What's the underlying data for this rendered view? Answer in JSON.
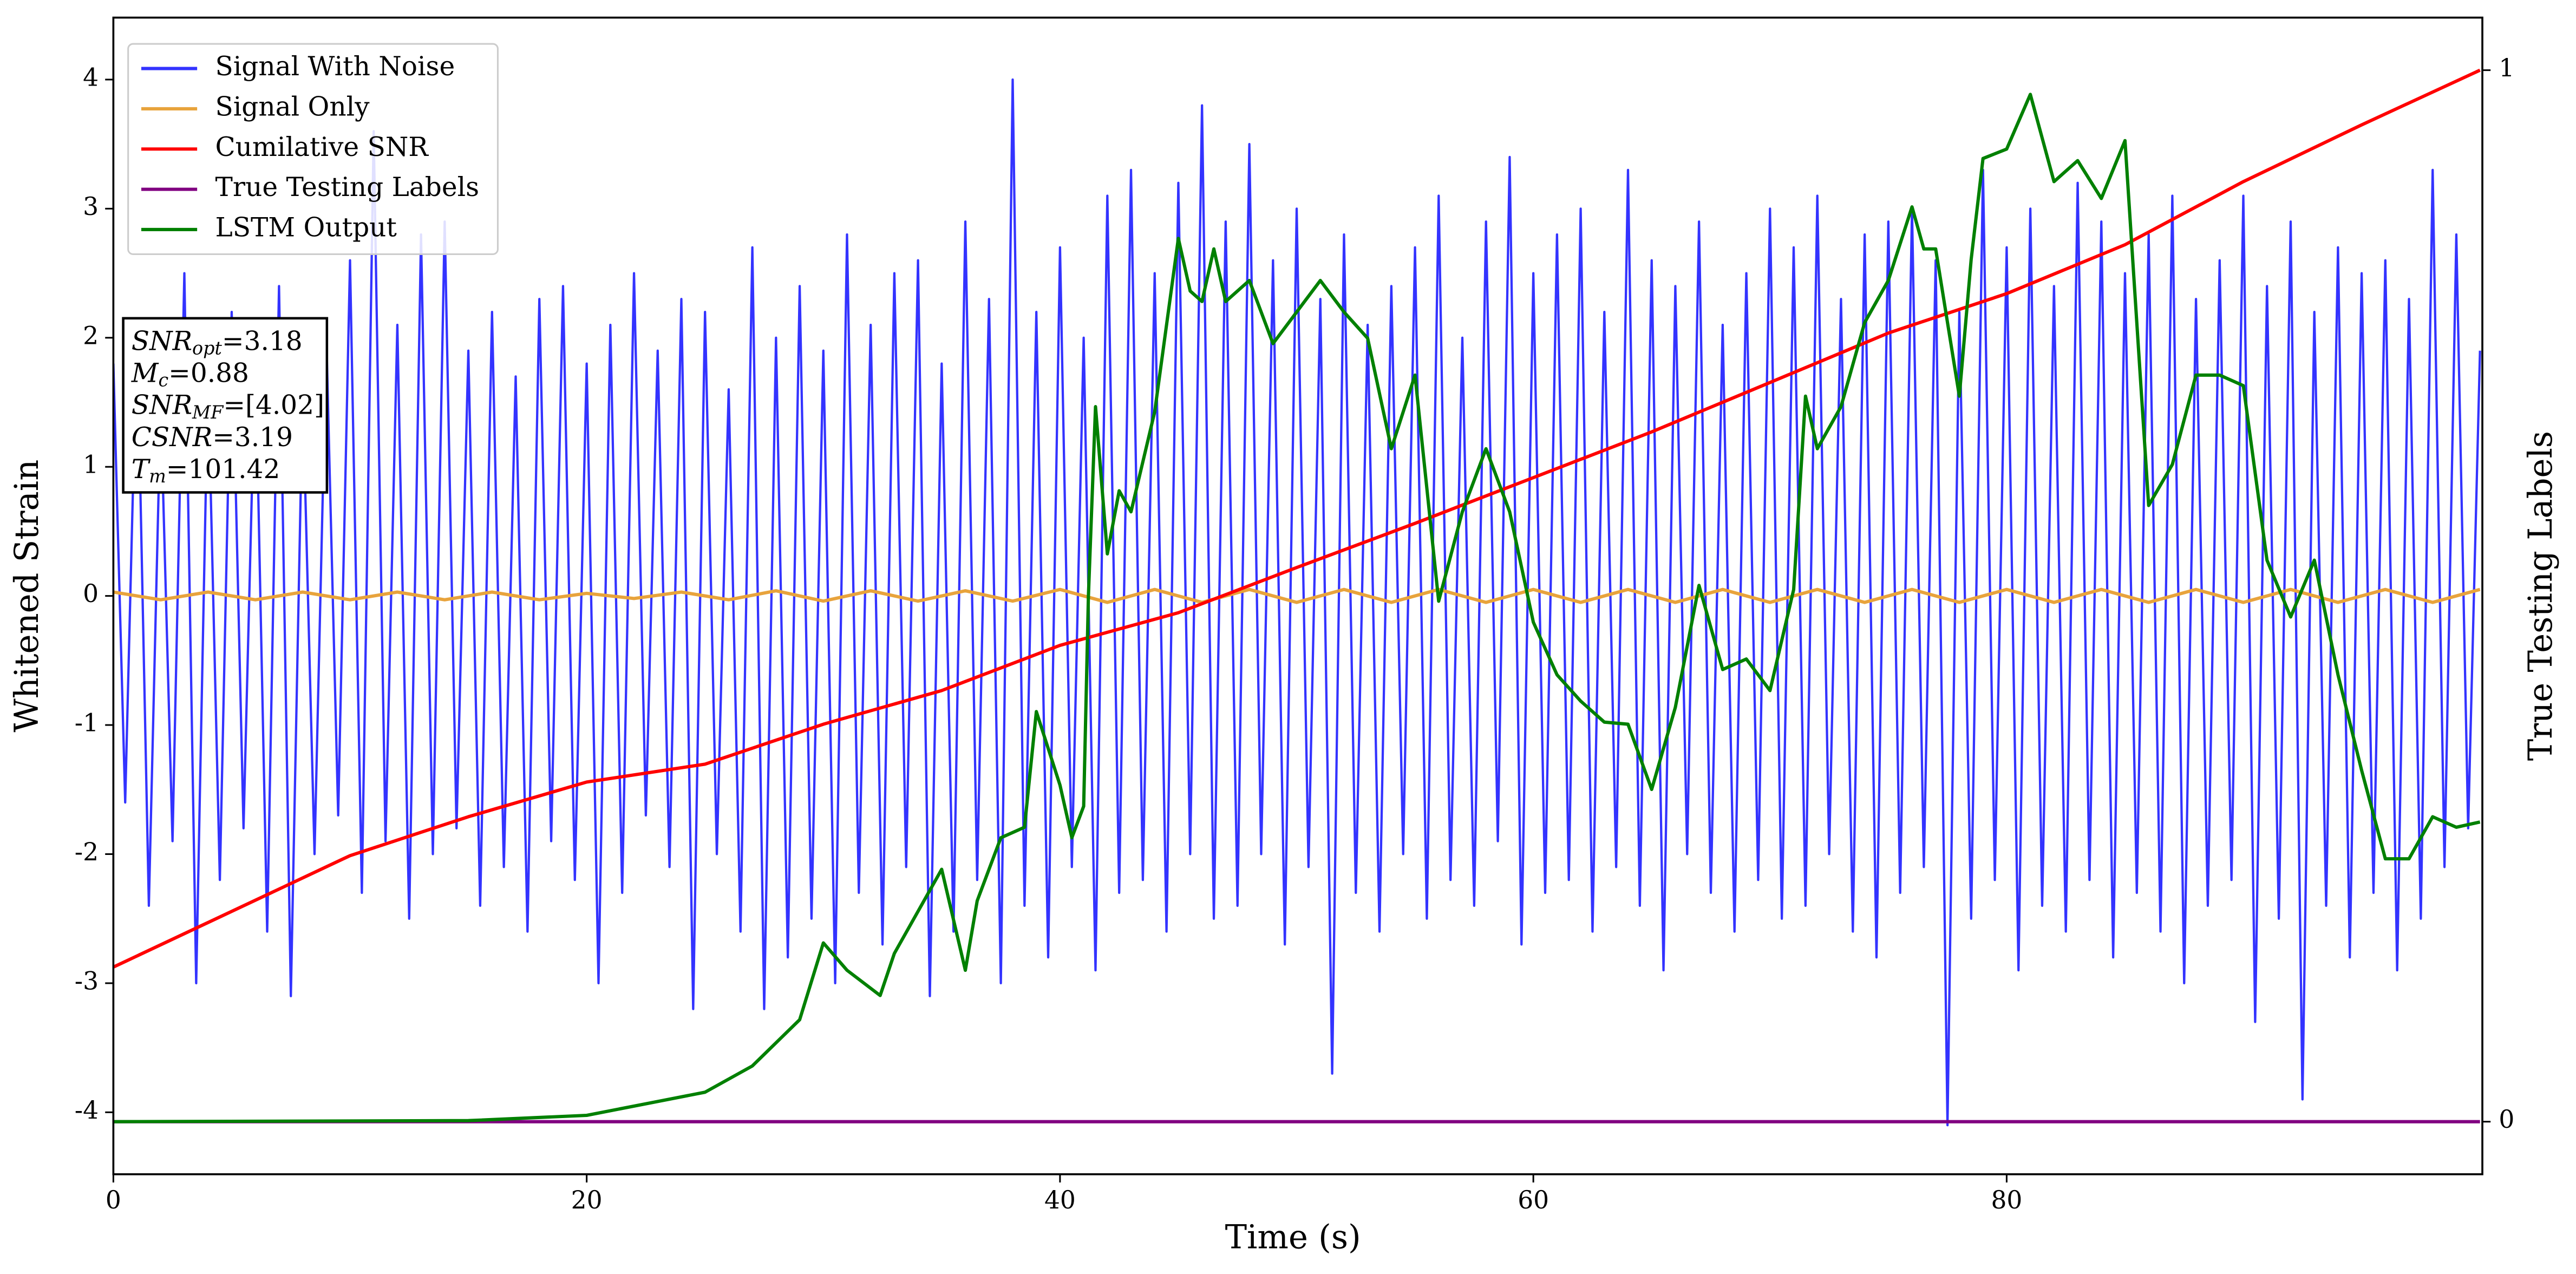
{
  "chart_data": {
    "type": "line",
    "xlabel": "Time (s)",
    "ylabel": "Whitened Strain",
    "y2label": "True Testing Labels",
    "xlim": [
      0,
      100.1
    ],
    "xticks": [
      0,
      20,
      40,
      60,
      80
    ],
    "ylim": [
      -4.48,
      4.48
    ],
    "yticks": [
      -4,
      -3,
      -2,
      -1,
      0,
      1,
      2,
      3,
      4
    ],
    "y2lim": [
      -0.05,
      1.05
    ],
    "y2ticks": [
      0,
      1
    ],
    "legend": "upper left",
    "annotations": [
      {
        "name": "SNR",
        "sub": "opt",
        "rest": "=3.18"
      },
      {
        "name": "M",
        "sub": "c",
        "rest": "=0.88"
      },
      {
        "name": "SNR",
        "sub": "MF",
        "rest": "=[4.02]"
      },
      {
        "name": "CSNR",
        "sub": "",
        "rest": "=3.19"
      },
      {
        "name": "T",
        "sub": "m",
        "rest": "=101.42"
      }
    ],
    "series": [
      {
        "name": "Signal With Noise",
        "color": "#3333ff",
        "x": [
          0,
          0.5,
          1,
          1.5,
          2,
          2.5,
          3,
          3.5,
          4,
          4.5,
          5,
          5.5,
          6,
          6.5,
          7,
          7.5,
          8,
          8.5,
          9,
          9.5,
          10,
          10.5,
          11,
          11.5,
          12,
          12.5,
          13,
          13.5,
          14,
          14.5,
          15,
          15.5,
          16,
          16.5,
          17,
          17.5,
          18,
          18.5,
          19,
          19.5,
          20,
          20.5,
          21,
          21.5,
          22,
          22.5,
          23,
          23.5,
          24,
          24.5,
          25,
          25.5,
          26,
          26.5,
          27,
          27.5,
          28,
          28.5,
          29,
          29.5,
          30,
          30.5,
          31,
          31.5,
          32,
          32.5,
          33,
          33.5,
          34,
          34.5,
          35,
          35.5,
          36,
          36.5,
          37,
          37.5,
          38,
          38.5,
          39,
          39.5,
          40,
          40.5,
          41,
          41.5,
          42,
          42.5,
          43,
          43.5,
          44,
          44.5,
          45,
          45.5,
          46,
          46.5,
          47,
          47.5,
          48,
          48.5,
          49,
          49.5,
          50,
          50.5,
          51,
          51.5,
          52,
          52.5,
          53,
          53.5,
          54,
          54.5,
          55,
          55.5,
          56,
          56.5,
          57,
          57.5,
          58,
          58.5,
          59,
          59.5,
          60,
          60.5,
          61,
          61.5,
          62,
          62.5,
          63,
          63.5,
          64,
          64.5,
          65,
          65.5,
          66,
          66.5,
          67,
          67.5,
          68,
          68.5,
          69,
          69.5,
          70,
          70.5,
          71,
          71.5,
          72,
          72.5,
          73,
          73.5,
          74,
          74.5,
          75,
          75.5,
          76,
          76.5,
          77,
          77.5,
          78,
          78.5,
          79,
          79.5,
          80,
          80.5,
          81,
          81.5,
          82,
          82.5,
          83,
          83.5,
          84,
          84.5,
          85,
          85.5,
          86,
          86.5,
          87,
          87.5,
          88,
          88.5,
          89,
          89.5,
          90,
          90.5,
          91,
          91.5,
          92,
          92.5,
          93,
          93.5,
          94,
          94.5,
          95,
          95.5,
          96,
          96.5,
          97,
          97.5,
          98,
          98.5,
          99,
          99.5,
          100
        ],
        "values": [
          1.8,
          -1.6,
          2.1,
          -2.4,
          1.5,
          -1.9,
          2.5,
          -3.0,
          1.7,
          -2.2,
          2.2,
          -1.8,
          1.9,
          -2.6,
          2.4,
          -3.1,
          1.6,
          -2.0,
          2.0,
          -1.7,
          2.6,
          -2.3,
          3.6,
          -1.9,
          2.1,
          -2.5,
          2.8,
          -2.0,
          2.9,
          -1.8,
          1.9,
          -2.4,
          2.2,
          -2.1,
          1.7,
          -2.6,
          2.3,
          -1.9,
          2.4,
          -2.2,
          1.8,
          -3.0,
          2.1,
          -2.3,
          2.5,
          -1.7,
          1.9,
          -2.1,
          2.3,
          -3.2,
          2.2,
          -2.0,
          1.6,
          -2.6,
          2.7,
          -3.2,
          2.0,
          -2.8,
          2.4,
          -2.5,
          1.9,
          -3.0,
          2.8,
          -2.3,
          2.1,
          -2.7,
          2.5,
          -2.1,
          2.6,
          -3.1,
          1.8,
          -2.6,
          2.9,
          -2.2,
          2.3,
          -3.0,
          4.0,
          -2.4,
          2.2,
          -2.8,
          2.7,
          -2.1,
          2.0,
          -2.9,
          3.1,
          -2.3,
          3.3,
          -2.2,
          2.5,
          -2.6,
          3.2,
          -2.0,
          3.8,
          -2.5,
          2.9,
          -2.4,
          3.5,
          -2.0,
          2.6,
          -2.7,
          3.0,
          -2.1,
          2.3,
          -3.7,
          2.8,
          -2.3,
          2.1,
          -2.6,
          2.4,
          -2.0,
          2.7,
          -2.5,
          3.1,
          -2.2,
          2.0,
          -2.4,
          2.9,
          -1.9,
          3.4,
          -2.7,
          2.5,
          -2.3,
          2.8,
          -2.2,
          3.0,
          -2.6,
          2.2,
          -2.1,
          3.3,
          -2.4,
          2.6,
          -2.9,
          2.4,
          -2.0,
          2.9,
          -2.3,
          2.1,
          -2.6,
          2.5,
          -2.2,
          3.0,
          -2.5,
          2.7,
          -2.4,
          3.1,
          -2.0,
          2.3,
          -2.6,
          2.8,
          -2.8,
          2.9,
          -2.3,
          3.0,
          -2.1,
          2.6,
          -4.1,
          2.2,
          -2.5,
          3.3,
          -2.2,
          2.7,
          -2.9,
          3.0,
          -2.4,
          2.4,
          -2.6,
          3.2,
          -2.2,
          2.9,
          -2.8,
          2.5,
          -2.3,
          2.8,
          -2.6,
          3.1,
          -3.0,
          2.3,
          -2.4,
          2.6,
          -2.2,
          3.1,
          -3.3,
          2.4,
          -2.5,
          2.9,
          -3.9,
          2.2,
          -2.4,
          2.7,
          -2.8,
          2.5,
          -2.3,
          2.6,
          -2.9,
          2.3,
          -2.5,
          3.3,
          -2.1,
          2.8,
          -1.8,
          1.9
        ]
      },
      {
        "name": "Signal Only",
        "color": "#e8a33c",
        "x": [
          0,
          2,
          4,
          6,
          8,
          10,
          12,
          14,
          16,
          18,
          20,
          22,
          24,
          26,
          28,
          30,
          32,
          34,
          36,
          38,
          40,
          42,
          44,
          46,
          48,
          50,
          52,
          54,
          56,
          58,
          60,
          62,
          64,
          66,
          68,
          70,
          72,
          74,
          76,
          78,
          80,
          82,
          84,
          86,
          88,
          90,
          92,
          94,
          96,
          98,
          100
        ],
        "values": [
          0.03,
          -0.03,
          0.03,
          -0.03,
          0.03,
          -0.03,
          0.03,
          -0.03,
          0.03,
          -0.03,
          0.02,
          -0.02,
          0.03,
          -0.03,
          0.04,
          -0.04,
          0.04,
          -0.04,
          0.04,
          -0.04,
          0.05,
          -0.05,
          0.05,
          -0.05,
          0.05,
          -0.05,
          0.05,
          -0.05,
          0.05,
          -0.05,
          0.05,
          -0.05,
          0.05,
          -0.05,
          0.05,
          -0.05,
          0.05,
          -0.05,
          0.05,
          -0.05,
          0.05,
          -0.05,
          0.05,
          -0.05,
          0.05,
          -0.05,
          0.05,
          -0.05,
          0.05,
          -0.05,
          0.05
        ]
      },
      {
        "name": "Cumilative SNR",
        "color": "#ff0000",
        "axis": "y2",
        "x": [
          0,
          5,
          10,
          15,
          20,
          25,
          30,
          35,
          40,
          45,
          50,
          55,
          60,
          65,
          70,
          75,
          80,
          85,
          90,
          95,
          100
        ],
        "values": [
          0.147,
          0.2,
          0.253,
          0.29,
          0.323,
          0.34,
          0.378,
          0.41,
          0.453,
          0.484,
          0.527,
          0.569,
          0.6125,
          0.656,
          0.703,
          0.75,
          0.7875,
          0.834,
          0.894,
          0.948,
          1.0
        ]
      },
      {
        "name": "True Testing Labels",
        "color": "#800080",
        "axis": "y2",
        "x": [
          0,
          100
        ],
        "values": [
          0,
          0
        ]
      },
      {
        "name": "LSTM Output",
        "color": "#008000",
        "axis": "y2",
        "x": [
          0,
          15,
          20,
          25,
          27,
          29,
          30,
          31,
          32.4,
          33,
          34.5,
          35,
          36,
          36.5,
          37.5,
          38.5,
          39,
          40,
          40.5,
          41,
          41.2,
          41.5,
          42,
          42.5,
          43,
          44,
          45,
          45.5,
          46,
          46.5,
          47,
          48,
          49,
          50,
          51,
          52,
          53,
          54,
          55,
          56,
          57,
          58,
          59,
          60,
          61,
          62,
          63,
          64,
          65,
          66,
          67,
          68,
          69,
          70,
          71,
          71.5,
          72,
          73,
          74,
          75,
          76,
          76.5,
          77,
          78,
          78.5,
          79,
          80,
          81,
          82,
          83,
          84,
          85,
          86,
          87,
          88,
          89,
          90,
          91,
          92,
          93,
          94,
          95,
          96,
          97,
          98,
          99,
          100
        ],
        "values": [
          0,
          0.001,
          0.006,
          0.028,
          0.053,
          0.097,
          0.17,
          0.144,
          0.12,
          0.16,
          0.22,
          0.24,
          0.144,
          0.21,
          0.27,
          0.28,
          0.39,
          0.32,
          0.27,
          0.3,
          0.5,
          0.68,
          0.54,
          0.6,
          0.58,
          0.675,
          0.84,
          0.79,
          0.78,
          0.83,
          0.78,
          0.8,
          0.74,
          0.77,
          0.8,
          0.77,
          0.745,
          0.64,
          0.71,
          0.495,
          0.58,
          0.64,
          0.58,
          0.475,
          0.425,
          0.4,
          0.38,
          0.378,
          0.316,
          0.394,
          0.51,
          0.43,
          0.44,
          0.41,
          0.506,
          0.69,
          0.64,
          0.68,
          0.76,
          0.8,
          0.87,
          0.83,
          0.83,
          0.69,
          0.82,
          0.916,
          0.925,
          0.977,
          0.894,
          0.914,
          0.878,
          0.933,
          0.586,
          0.625,
          0.71,
          0.71,
          0.7,
          0.534,
          0.48,
          0.534,
          0.425,
          0.334,
          0.25,
          0.25,
          0.29,
          0.28,
          0.285
        ]
      }
    ]
  }
}
